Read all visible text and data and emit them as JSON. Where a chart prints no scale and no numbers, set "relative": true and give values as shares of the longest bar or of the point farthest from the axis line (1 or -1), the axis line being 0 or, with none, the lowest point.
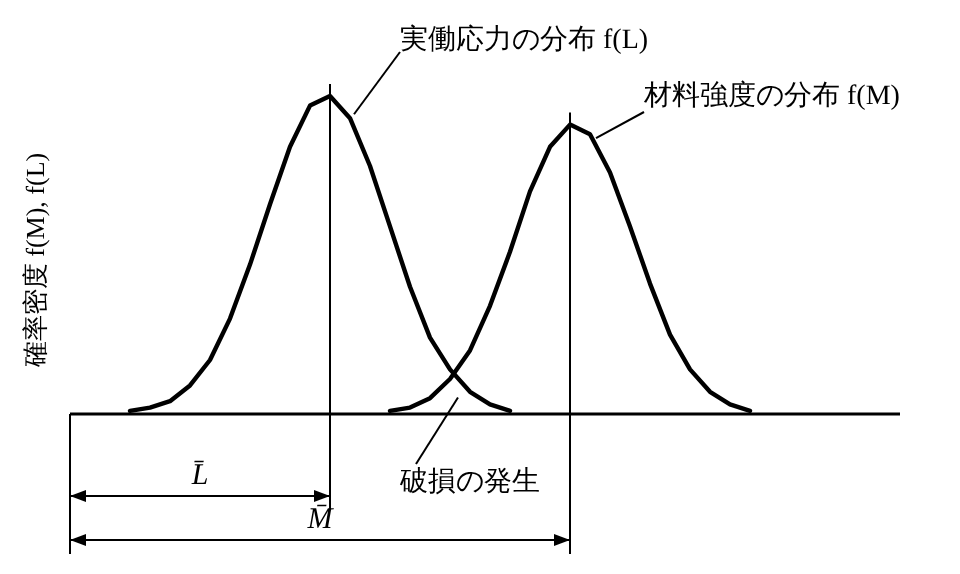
{
  "chart_data": {
    "type": "line",
    "relative": true,
    "ylabel": "確率密度 f(M), f(L)",
    "categories": [
      null,
      null,
      null,
      null,
      null,
      null,
      null,
      null,
      null,
      null,
      null,
      null,
      null,
      null,
      null,
      null,
      null,
      null,
      null,
      null,
      null,
      null,
      null,
      null,
      null,
      null,
      null,
      null,
      null,
      null,
      null,
      null,
      null,
      null,
      null,
      null,
      null,
      null,
      null,
      null,
      null,
      null
    ],
    "series": [
      {
        "color": "#000000",
        "values": [
          null,
          null,
          null,
          0.01,
          0.02,
          0.04,
          0.09,
          0.17,
          0.3,
          0.47,
          0.66,
          0.84,
          0.97,
          1,
          0.93,
          0.78,
          0.59,
          0.4,
          0.24,
          0.14,
          0.07,
          0.03,
          0.01,
          null,
          null,
          null,
          null,
          null,
          null,
          null,
          null,
          null,
          null,
          null,
          null,
          null,
          null,
          null,
          null,
          null,
          null,
          null
        ]
      },
      {
        "color": "#000000",
        "values": [
          null,
          null,
          null,
          null,
          null,
          null,
          null,
          null,
          null,
          null,
          null,
          null,
          null,
          null,
          null,
          null,
          0.01,
          0.02,
          0.05,
          0.11,
          0.2,
          0.34,
          0.51,
          0.7,
          0.84,
          0.91,
          0.88,
          0.76,
          0.59,
          0.41,
          0.25,
          0.14,
          0.07,
          0.03,
          0.01,
          null,
          null,
          null,
          null,
          null,
          null,
          null
        ]
      }
    ],
    "annotations": [
      "実働応力の分布 f(L)",
      "材料強度の分布 f(M)",
      "破損の発生",
      "L̄",
      "M̄"
    ]
  }
}
